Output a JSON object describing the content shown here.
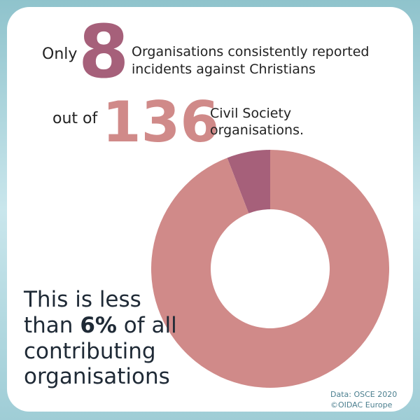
{
  "text": {
    "only": "Only",
    "count": "8",
    "line1": "Organisations consistently reported",
    "line2": "incidents against Christians",
    "out_of": "out of",
    "total": "136",
    "line3": "Civil Society",
    "line4": "organisations.",
    "less1": "This is less",
    "less2a": "than ",
    "less2b": "6%",
    "less2c": " of all",
    "less3": "contributing",
    "less4": "organisations",
    "source1": "Data: OSCE 2020",
    "source2": "©OIDAC Europe"
  },
  "chart_data": {
    "type": "pie",
    "donut": true,
    "values": [
      8,
      128
    ],
    "colors": [
      "#a6607a",
      "#d08a89"
    ]
  }
}
